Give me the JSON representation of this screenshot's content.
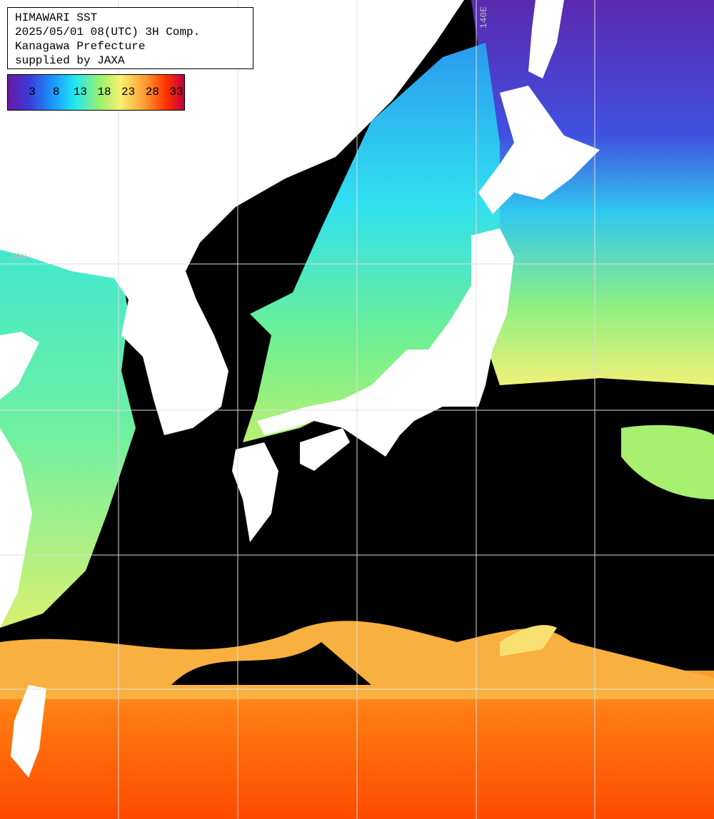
{
  "header": {
    "lines": [
      "HIMAWARI SST",
      "2025/05/01 08(UTC) 3H Comp.",
      "Kanagawa Prefecture",
      "supplied by JAXA"
    ]
  },
  "colorbar": {
    "ticks": [
      3,
      8,
      13,
      18,
      23,
      28,
      33
    ]
  },
  "grid_labels": {
    "latitude": "40N",
    "longitude": "140E"
  }
}
